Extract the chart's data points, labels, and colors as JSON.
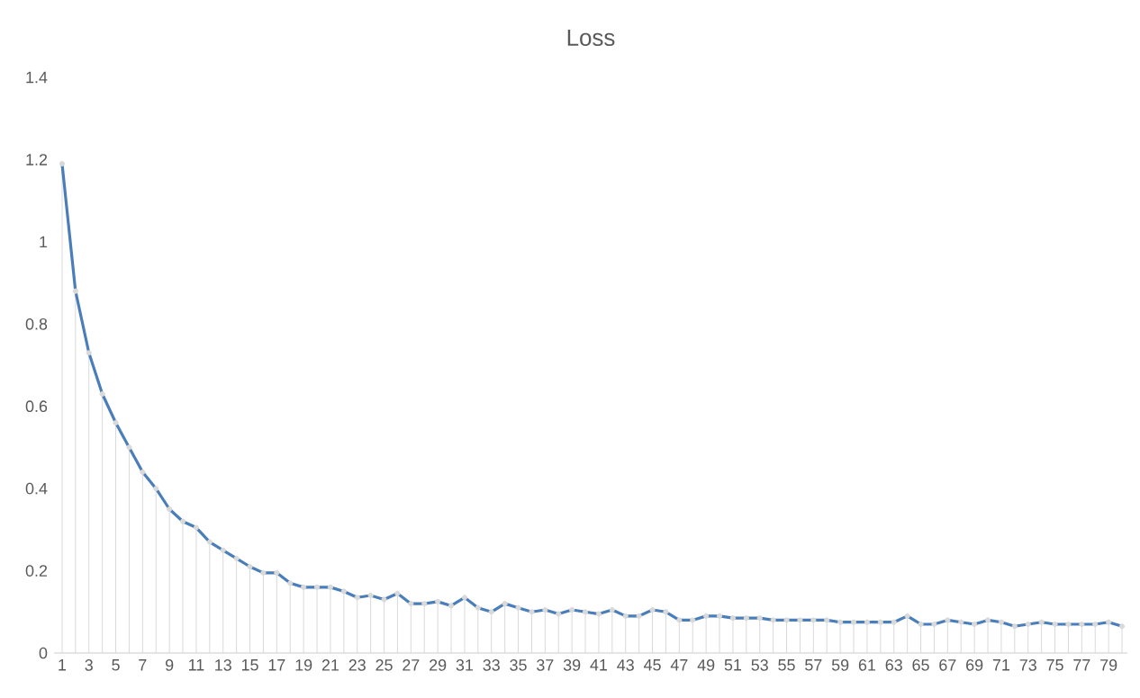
{
  "chart_data": {
    "type": "line",
    "title": "Loss",
    "categories": [
      "1",
      null,
      "3",
      null,
      "5",
      null,
      "7",
      null,
      "9",
      null,
      "11",
      null,
      "13",
      null,
      "15",
      null,
      "17",
      null,
      "19",
      null,
      "21",
      null,
      "23",
      null,
      "25",
      null,
      "27",
      null,
      "29",
      null,
      "31",
      null,
      "33",
      null,
      "35",
      null,
      "37",
      null,
      "39",
      null,
      "41",
      null,
      "43",
      null,
      "45",
      null,
      "47",
      null,
      "49",
      null,
      "51",
      null,
      "53",
      null,
      "55",
      null,
      "57",
      null,
      "59",
      null,
      "61",
      null,
      "63",
      null,
      "65",
      null,
      "67",
      null,
      "69",
      null,
      "71",
      null,
      "73",
      null,
      "75",
      null,
      "77",
      null,
      "79",
      null
    ],
    "series": [
      {
        "type": "lollipop",
        "color": "#d9d9d9",
        "marker": "circle",
        "values": [
          1.19,
          0.88,
          0.73,
          0.63,
          0.56,
          0.5,
          0.44,
          0.4,
          0.35,
          0.32,
          0.305,
          0.27,
          0.25,
          0.23,
          0.21,
          0.195,
          0.195,
          0.17,
          0.16,
          0.16,
          0.16,
          0.15,
          0.135,
          0.14,
          0.13,
          0.145,
          0.12,
          0.12,
          0.125,
          0.115,
          0.135,
          0.11,
          0.1,
          0.12,
          0.11,
          0.1,
          0.105,
          0.095,
          0.105,
          0.1,
          0.095,
          0.105,
          0.09,
          0.09,
          0.105,
          0.1,
          0.08,
          0.08,
          0.09,
          0.09,
          0.085,
          0.085,
          0.085,
          0.08,
          0.08,
          0.08,
          0.08,
          0.08,
          0.075,
          0.075,
          0.075,
          0.075,
          0.075,
          0.09,
          0.07,
          0.07,
          0.08,
          0.075,
          0.07,
          0.08,
          0.075,
          0.065,
          0.07,
          0.075,
          0.07,
          0.07,
          0.07,
          0.07,
          0.075,
          0.065
        ]
      },
      {
        "color": "#4a7ebb",
        "values": [
          1.19,
          0.88,
          0.73,
          0.63,
          0.56,
          0.5,
          0.44,
          0.4,
          0.35,
          0.32,
          0.305,
          0.27,
          0.25,
          0.23,
          0.21,
          0.195,
          0.195,
          0.17,
          0.16,
          0.16,
          0.16,
          0.15,
          0.135,
          0.14,
          0.13,
          0.145,
          0.12,
          0.12,
          0.125,
          0.115,
          0.135,
          0.11,
          0.1,
          0.12,
          0.11,
          0.1,
          0.105,
          0.095,
          0.105,
          0.1,
          0.095,
          0.105,
          0.09,
          0.09,
          0.105,
          0.1,
          0.08,
          0.08,
          0.09,
          0.09,
          0.085,
          0.085,
          0.085,
          0.08,
          0.08,
          0.08,
          0.08,
          0.08,
          0.075,
          0.075,
          0.075,
          0.075,
          0.075,
          0.09,
          0.07,
          0.07,
          0.08,
          0.075,
          0.07,
          0.08,
          0.075,
          0.065,
          0.07,
          0.075,
          0.07,
          0.07,
          0.07,
          0.07,
          0.075,
          0.065
        ]
      }
    ],
    "ylim": [
      0,
      1.4
    ],
    "yticks": [
      0,
      0.2,
      0.4,
      0.6,
      0.8,
      1,
      1.2,
      1.4
    ],
    "grid": false,
    "legend": false,
    "marker": "none",
    "line_style": "solid"
  }
}
